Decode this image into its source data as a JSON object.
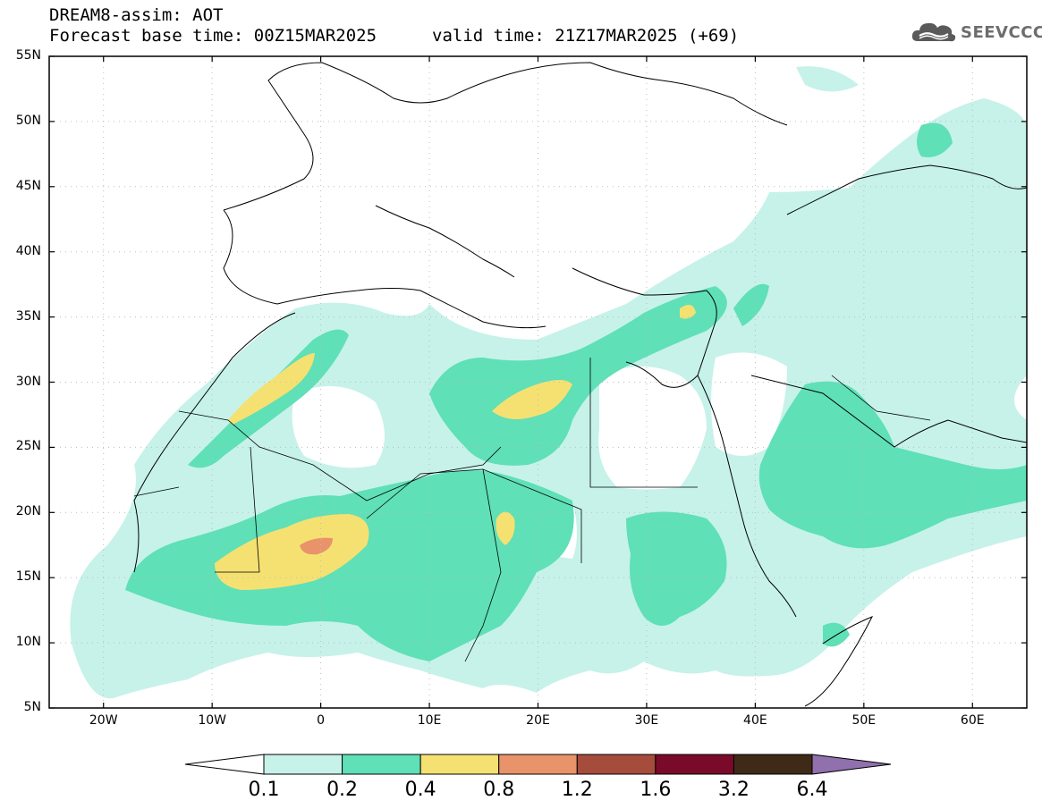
{
  "header": {
    "title": "DREAM8-assim: AOT",
    "forecast_base": "Forecast base time: 00Z15MAR2025",
    "valid_time": "valid time: 21Z17MAR2025 (+69)"
  },
  "logo": {
    "text": "SEEVCCC",
    "icon": "cloud-icon"
  },
  "map": {
    "lon_range": [
      -25,
      65
    ],
    "lat_range": [
      5,
      55
    ],
    "lat_ticks": [
      {
        "value": 55,
        "label": "55N"
      },
      {
        "value": 50,
        "label": "50N"
      },
      {
        "value": 45,
        "label": "45N"
      },
      {
        "value": 40,
        "label": "40N"
      },
      {
        "value": 35,
        "label": "35N"
      },
      {
        "value": 30,
        "label": "30N"
      },
      {
        "value": 25,
        "label": "25N"
      },
      {
        "value": 20,
        "label": "20N"
      },
      {
        "value": 15,
        "label": "15N"
      },
      {
        "value": 10,
        "label": "10N"
      },
      {
        "value": 5,
        "label": "5N"
      }
    ],
    "lon_ticks": [
      {
        "value": -20,
        "label": "20W"
      },
      {
        "value": -10,
        "label": "10W"
      },
      {
        "value": 0,
        "label": "0"
      },
      {
        "value": 10,
        "label": "10E"
      },
      {
        "value": 20,
        "label": "20E"
      },
      {
        "value": 30,
        "label": "30E"
      },
      {
        "value": 40,
        "label": "40E"
      },
      {
        "value": 50,
        "label": "50E"
      },
      {
        "value": 60,
        "label": "60E"
      }
    ]
  },
  "colorbar": {
    "levels": [
      "0.1",
      "0.2",
      "0.4",
      "0.8",
      "1.2",
      "1.6",
      "3.2",
      "6.4"
    ],
    "colors": [
      "#ffffff",
      "#c6f2e9",
      "#5fe0b6",
      "#f5e172",
      "#e9936a",
      "#a64c3c",
      "#7a0a2a",
      "#3e2a17",
      "#9070ad"
    ]
  },
  "palette": {
    "very_light": "#c6f2e9",
    "light": "#5fe0b6",
    "medium": "#f5e172",
    "high": "#e9936a"
  }
}
